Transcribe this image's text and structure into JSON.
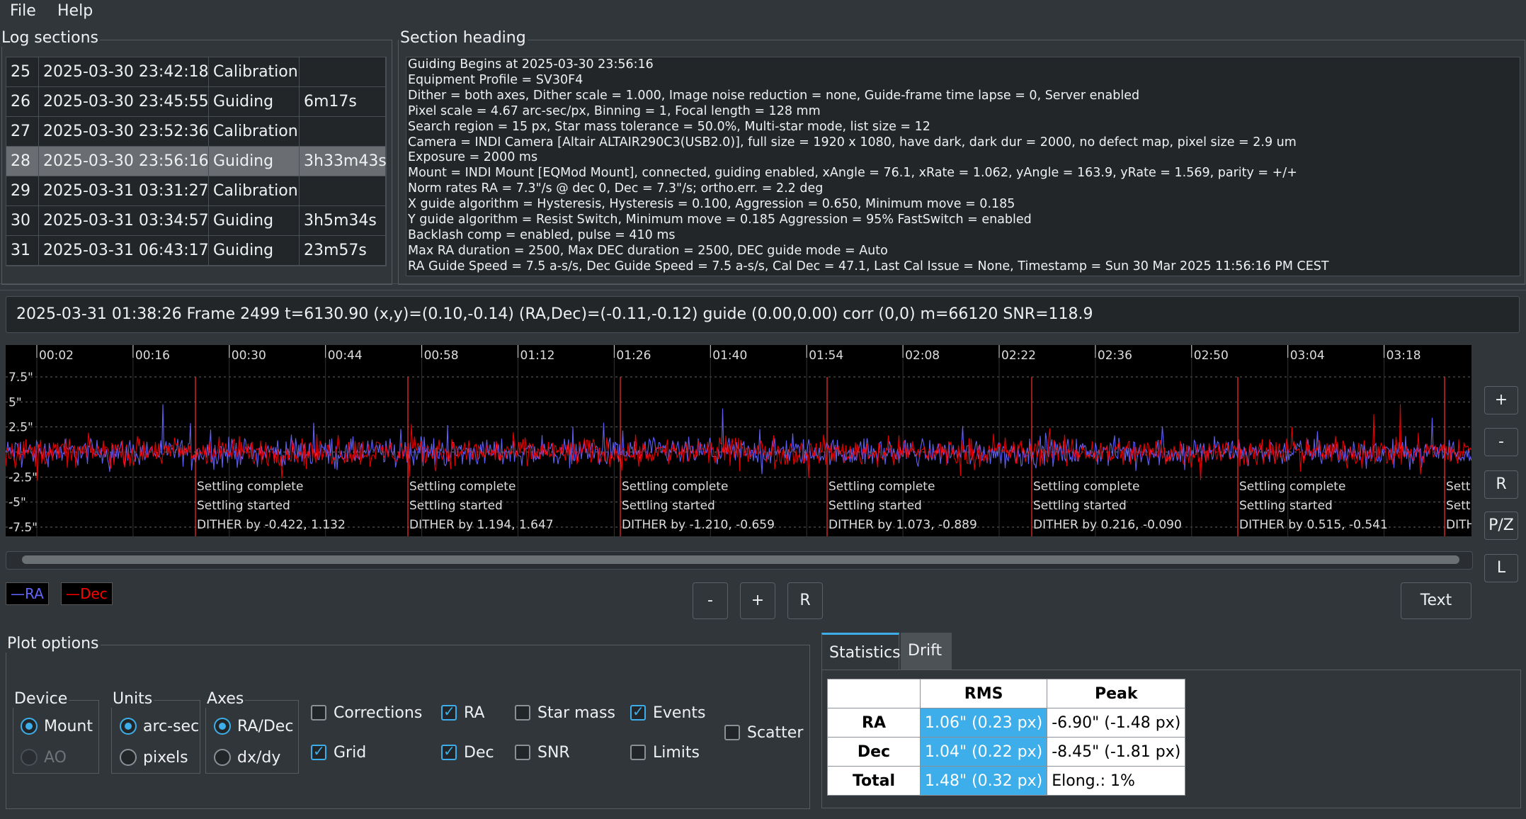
{
  "menu": [
    "File",
    "Help"
  ],
  "log_sections": {
    "title": "Log sections",
    "rows": [
      {
        "num": "25",
        "time": "2025-03-30 23:42:18",
        "type": "Calibration",
        "dur": ""
      },
      {
        "num": "26",
        "time": "2025-03-30 23:45:55",
        "type": "Guiding",
        "dur": "6m17s"
      },
      {
        "num": "27",
        "time": "2025-03-30 23:52:36",
        "type": "Calibration",
        "dur": ""
      },
      {
        "num": "28",
        "time": "2025-03-30 23:56:16",
        "type": "Guiding",
        "dur": "3h33m43s"
      },
      {
        "num": "29",
        "time": "2025-03-31 03:31:27",
        "type": "Calibration",
        "dur": ""
      },
      {
        "num": "30",
        "time": "2025-03-31 03:34:57",
        "type": "Guiding",
        "dur": "3h5m34s"
      },
      {
        "num": "31",
        "time": "2025-03-31 06:43:17",
        "type": "Guiding",
        "dur": "23m57s"
      }
    ],
    "selected_index": 3
  },
  "section_heading": {
    "title": "Section heading",
    "lines": [
      "Guiding Begins at 2025-03-30 23:56:16",
      "Equipment Profile = SV30F4",
      "Dither = both axes, Dither scale = 1.000, Image noise reduction = none, Guide-frame time lapse = 0, Server enabled",
      "Pixel scale = 4.67 arc-sec/px, Binning = 1, Focal length = 128 mm",
      "Search region = 15 px, Star mass tolerance = 50.0%, Multi-star mode, list size = 12",
      " Camera = INDI Camera [Altair ALTAIR290C3(USB2.0)], full size = 1920 x 1080, have dark, dark dur = 2000, no defect map, pixel size = 2.9 um",
      "Exposure = 2000 ms",
      "Mount = INDI Mount [EQMod Mount], connected, guiding enabled, xAngle = 76.1, xRate = 1.062, yAngle = 163.9, yRate = 1.569, parity = +/+",
      "Norm rates RA = 7.3\"/s @ dec 0, Dec = 7.3\"/s; ortho.err. = 2.2 deg",
      "X guide algorithm = Hysteresis, Hysteresis = 0.100, Aggression = 0.650, Minimum move = 0.185",
      "Y guide algorithm = Resist Switch, Minimum move = 0.185 Aggression = 95% FastSwitch = enabled",
      "Backlash comp = enabled, pulse = 410 ms",
      "Max RA duration = 2500, Max DEC duration = 2500, DEC guide mode = Auto",
      "RA Guide Speed = 7.5 a-s/s, Dec Guide Speed = 7.5 a-s/s, Cal Dec = 47.1, Last Cal Issue = None, Timestamp = Sun 30 Mar 2025 11:56:16 PM CEST"
    ]
  },
  "status_line": "2025-03-31 01:38:26 Frame 2499 t=6130.90 (x,y)=(0.10,-0.14) (RA,Dec)=(-0.11,-0.12) guide (0.00,0.00) corr (0,0) m=66120 SNR=118.9",
  "chart_data": {
    "type": "line",
    "x_ticks": [
      "00:02",
      "00:16",
      "00:30",
      "00:44",
      "00:58",
      "01:12",
      "01:26",
      "01:40",
      "01:54",
      "02:08",
      "02:22",
      "02:36",
      "02:50",
      "03:04",
      "03:18"
    ],
    "y_ticks": [
      "7.5\"",
      "5\"",
      "2.5\"",
      "-2.5\"",
      "-5\"",
      "-7.5\""
    ],
    "ylim": [
      -7.5,
      7.5
    ],
    "grid": true,
    "series": [
      {
        "name": "RA",
        "color": "#6464ff"
      },
      {
        "name": "Dec",
        "color": "#ff0000"
      }
    ],
    "events": [
      {
        "lines": [
          "Settling complete",
          "Settling started",
          "DITHER by -0.422, 1.132"
        ]
      },
      {
        "lines": [
          "Settling complete",
          "Settling started",
          "DITHER by 1.194, 1.647"
        ]
      },
      {
        "lines": [
          "Settling complete",
          "Settling started",
          "DITHER by -1.210, -0.659"
        ]
      },
      {
        "lines": [
          "Settling complete",
          "Settling started",
          "DITHER by 1.073, -0.889"
        ]
      },
      {
        "lines": [
          "Settling complete",
          "Settling started",
          "DITHER by 0.216, -0.090"
        ]
      },
      {
        "lines": [
          "Settling complete",
          "Settling started",
          "DITHER by 0.515, -0.541"
        ]
      },
      {
        "lines": [
          "Settli",
          "Settli",
          "DITH"
        ]
      }
    ]
  },
  "side_buttons": [
    "+",
    "-",
    "R",
    "P/Z",
    "L"
  ],
  "legend": {
    "ra": "—RA",
    "dec": "—Dec"
  },
  "zoom_buttons": [
    "-",
    "+",
    "R"
  ],
  "text_button": "Text",
  "plot_options": {
    "title": "Plot options",
    "device": {
      "title": "Device",
      "mount": "Mount",
      "ao": "AO"
    },
    "units": {
      "title": "Units",
      "arcsec": "arc-sec",
      "pixels": "pixels"
    },
    "axes": {
      "title": "Axes",
      "radec": "RA/Dec",
      "dxdy": "dx/dy"
    },
    "checks": {
      "corrections": "Corrections",
      "grid": "Grid",
      "ra": "RA",
      "dec": "Dec",
      "star_mass": "Star mass",
      "snr": "SNR",
      "events": "Events",
      "limits": "Limits",
      "scatter": "Scatter"
    }
  },
  "stats": {
    "tabs": [
      "Statistics",
      "Drift"
    ],
    "headers": [
      "RMS",
      "Peak"
    ],
    "rows": [
      {
        "label": "RA",
        "rms": "1.06\" (0.23 px)",
        "peak": "-6.90\" (-1.48 px)"
      },
      {
        "label": "Dec",
        "rms": "1.04\" (0.22 px)",
        "peak": "-8.45\" (-1.81 px)"
      },
      {
        "label": "Total",
        "rms": "1.48\" (0.32 px)",
        "peak": "Elong.: 1%"
      }
    ]
  }
}
